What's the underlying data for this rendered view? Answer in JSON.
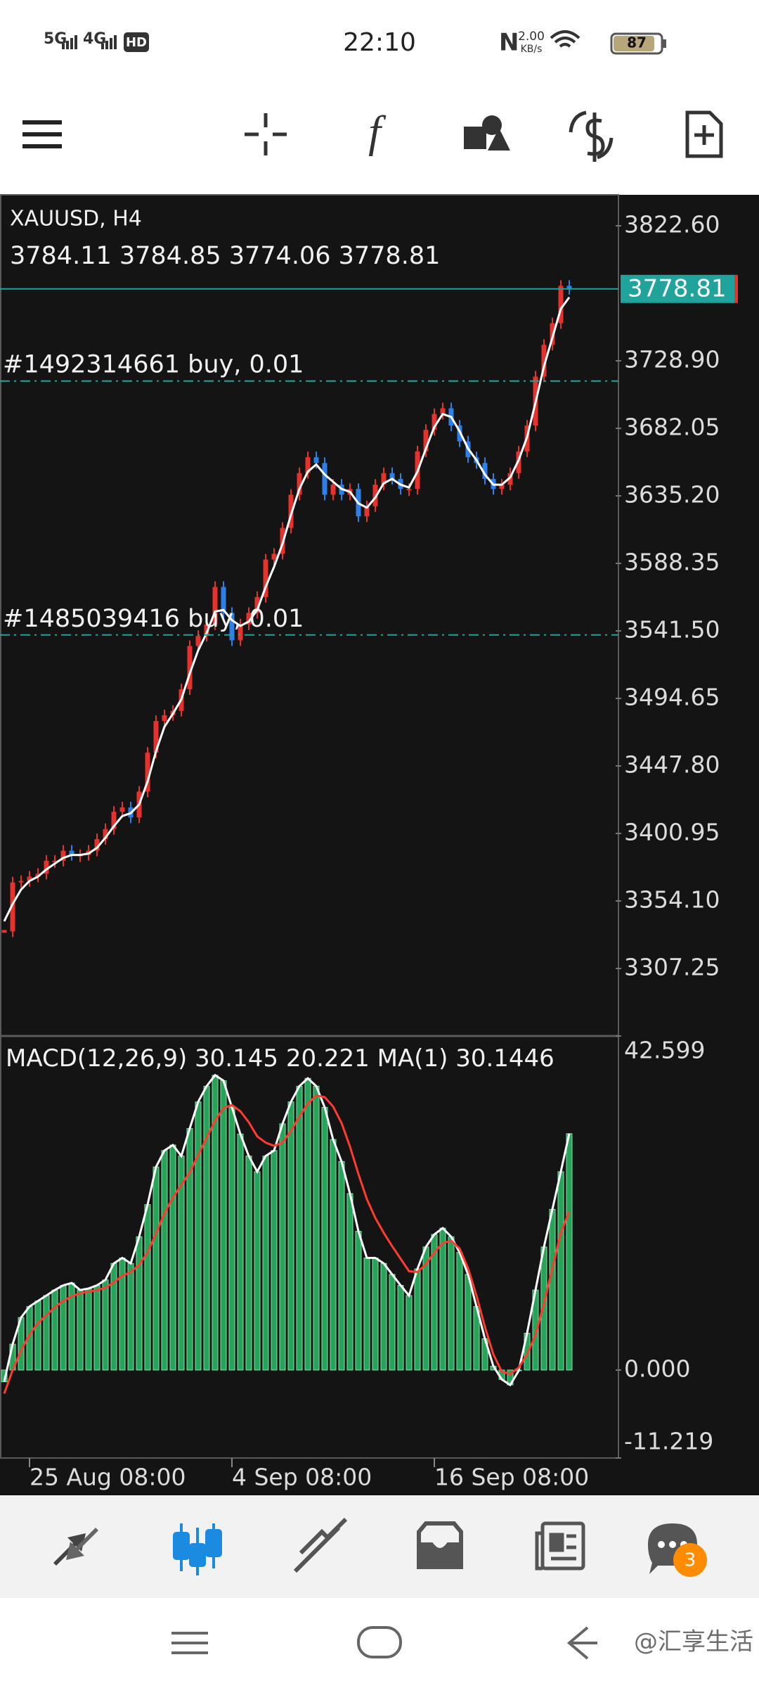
{
  "status_bar": {
    "time": "22:10",
    "network_1": "5G",
    "network_2": "4G",
    "hd": "HD",
    "speed": "2.00",
    "speed_unit": "KB/s",
    "battery": "87"
  },
  "chart_data": [
    {
      "type": "candlestick",
      "symbol": "XAUUSD, H4",
      "ohlc": [
        3784.11,
        3784.85,
        3774.06,
        3778.81
      ],
      "current_price": 3778.81,
      "current_price_color": "#1fa39a",
      "up_color": "#e5322d",
      "down_color": "#2f7fe8",
      "orders": [
        {
          "label": "#1492314661 buy, 0.01",
          "price": 3714.9
        },
        {
          "label": "#1485039416 buy, 0.01",
          "price": 3538.7
        }
      ],
      "categories": [
        null,
        null,
        null,
        "25 Aug 08:00",
        null,
        null,
        null,
        null,
        null,
        null,
        null,
        null,
        null,
        null,
        null,
        null,
        null,
        null,
        null,
        null,
        null,
        null,
        null,
        null,
        null,
        null,
        null,
        "4 Sep 08:00",
        null,
        null,
        null,
        null,
        null,
        null,
        null,
        null,
        null,
        null,
        null,
        null,
        null,
        null,
        null,
        null,
        null,
        null,
        null,
        null,
        null,
        null,
        null,
        "16 Sep 08:00",
        null,
        null,
        null,
        null,
        null,
        null,
        null,
        null,
        null,
        null,
        null,
        null,
        null,
        null,
        null,
        null
      ],
      "close": [
        3333,
        3367,
        3368,
        3371,
        3373,
        3382,
        3382,
        3389,
        3386,
        3386,
        3389,
        3397,
        3404,
        3416,
        3419,
        3412,
        3430,
        3457,
        3479,
        3483,
        3486,
        3501,
        3531,
        3538,
        3546,
        3572,
        3554,
        3535,
        3546,
        3554,
        3565,
        3591,
        3595,
        3613,
        3636,
        3651,
        3662,
        3658,
        3636,
        3643,
        3636,
        3640,
        3621,
        3628,
        3643,
        3651,
        3647,
        3640,
        3640,
        3666,
        3681,
        3692,
        3696,
        3684,
        3673,
        3662,
        3658,
        3647,
        3640,
        3643,
        3651,
        3666,
        3684,
        3718,
        3740,
        3755,
        3781,
        3778.81
      ],
      "ma": {
        "color": "#ffffff",
        "values": [
          3340,
          3352,
          3362,
          3368,
          3371,
          3376,
          3380,
          3384,
          3386,
          3386,
          3387,
          3391,
          3398,
          3406,
          3413,
          3415,
          3421,
          3437,
          3458,
          3475,
          3484,
          3494,
          3512,
          3528,
          3540,
          3555,
          3556,
          3549,
          3545,
          3548,
          3556,
          3572,
          3586,
          3602,
          3622,
          3640,
          3652,
          3657,
          3650,
          3645,
          3640,
          3638,
          3630,
          3627,
          3634,
          3644,
          3647,
          3643,
          3641,
          3652,
          3668,
          3683,
          3692,
          3690,
          3680,
          3668,
          3660,
          3650,
          3643,
          3643,
          3648,
          3660,
          3676,
          3700,
          3725,
          3745,
          3765,
          3773
        ]
      },
      "ylim": [
        3260.4,
        3844.1
      ],
      "yticks": [
        {
          "value": 3822.6,
          "label": "3822.60"
        },
        {
          "value": 3728.9,
          "label": "3728.90"
        },
        3682.05,
        {
          "value": 3635.2,
          "label": "3635.20"
        },
        3588.35,
        {
          "value": 3541.5,
          "label": "3541.50"
        },
        3494.65,
        {
          "value": 3447.8,
          "label": "3447.80"
        },
        3400.95,
        {
          "value": 3354.1,
          "label": "3354.10"
        },
        3307.25
      ]
    },
    {
      "type": "macd",
      "title": "MACD(12,26,9)",
      "macd_value": 30.145,
      "signal_value": 20.221,
      "ma_label": "MA(1)",
      "ma_value": 30.1446,
      "histogram": {
        "color": "#27a35a",
        "outline_color": "#ffffff",
        "values": [
          -1.5,
          3.3,
          6.7,
          8.1,
          8.8,
          9.5,
          10.2,
          10.8,
          11.1,
          10.2,
          10.4,
          10.8,
          11.5,
          13.6,
          14.3,
          13.6,
          17.0,
          21.1,
          25.9,
          28.0,
          28.7,
          27.3,
          30.8,
          34.2,
          36.2,
          37.6,
          36.9,
          33.5,
          30.1,
          27.3,
          25.3,
          27.3,
          28.0,
          31.4,
          34.2,
          36.2,
          37.2,
          36.2,
          33.5,
          29.4,
          26.6,
          22.5,
          17.7,
          14.3,
          14.3,
          13.6,
          12.2,
          10.8,
          9.5,
          12.9,
          15.7,
          17.3,
          18.1,
          17.0,
          15.0,
          12.2,
          8.1,
          4.0,
          0.5,
          -1.2,
          -1.9,
          -0.1,
          4.7,
          10.2,
          15.7,
          20.5,
          25.3,
          30.145
        ]
      },
      "signal": {
        "color": "#ff3b2f",
        "values": [
          -3,
          0,
          2.5,
          4.5,
          6,
          7,
          8,
          8.8,
          9.4,
          9.8,
          10,
          10.2,
          10.5,
          11.2,
          12,
          12.5,
          13.4,
          15,
          17.4,
          20,
          22,
          23.6,
          25.2,
          27.4,
          29.6,
          31.8,
          33.4,
          33.8,
          33,
          31.6,
          29.8,
          29,
          28.6,
          29,
          30.5,
          32.3,
          34,
          35,
          34.8,
          33.6,
          31.5,
          28.5,
          25,
          21.8,
          19.4,
          17.5,
          15.8,
          14.2,
          12.6,
          12.5,
          13.5,
          15,
          16.2,
          16.5,
          15.5,
          13,
          9.5,
          5.5,
          2,
          -0.2,
          -0.5,
          0.3,
          2,
          4.5,
          8.5,
          13,
          17.5,
          20.221
        ]
      },
      "ylim": [
        -11.219,
        42.599
      ],
      "yticks": [
        42.599,
        {
          "value": 0,
          "label": "0.000"
        },
        -11.219
      ]
    }
  ],
  "bottom_nav": {
    "badge": "3"
  },
  "watermark": "@汇享生活"
}
